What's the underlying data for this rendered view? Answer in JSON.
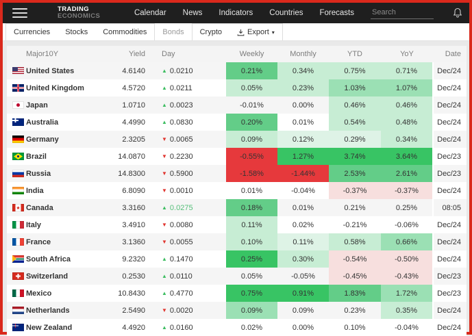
{
  "header": {
    "logo_line1": "TRADING",
    "logo_line2": "ECONOMICS",
    "nav": [
      "Calendar",
      "News",
      "Indicators",
      "Countries",
      "Forecasts"
    ],
    "search_placeholder": "Search"
  },
  "tabs": {
    "items": [
      "Currencies",
      "Stocks",
      "Commodities",
      "Bonds",
      "Crypto"
    ],
    "active": "Bonds",
    "export_label": "Export"
  },
  "table": {
    "columns": [
      "Major10Y",
      "Yield",
      "Day",
      "Weekly",
      "Monthly",
      "YTD",
      "YoY",
      "Date"
    ],
    "rows": [
      {
        "country": "United States",
        "flag": "us",
        "yield": "4.6140",
        "day_dir": "up",
        "day": "0.0210",
        "day_fresh": false,
        "weekly": "0.21%",
        "monthly": "0.34%",
        "ytd": "0.75%",
        "yoy": "0.71%",
        "date": "Dec/24",
        "bg": [
          "g3",
          "g1",
          "g1",
          "g1"
        ]
      },
      {
        "country": "United Kingdom",
        "flag": "gb",
        "yield": "4.5720",
        "day_dir": "up",
        "day": "0.0211",
        "day_fresh": false,
        "weekly": "0.05%",
        "monthly": "0.23%",
        "ytd": "1.03%",
        "yoy": "1.07%",
        "date": "Dec/24",
        "bg": [
          "g1",
          "g1",
          "g2",
          "g2"
        ]
      },
      {
        "country": "Japan",
        "flag": "jp",
        "yield": "1.0710",
        "day_dir": "up",
        "day": "0.0023",
        "day_fresh": false,
        "weekly": "-0.01%",
        "monthly": "0.00%",
        "ytd": "0.46%",
        "yoy": "0.46%",
        "date": "Dec/24",
        "bg": [
          "none",
          "none",
          "g1",
          "g1"
        ]
      },
      {
        "country": "Australia",
        "flag": "au",
        "yield": "4.4990",
        "day_dir": "up",
        "day": "0.0830",
        "day_fresh": false,
        "weekly": "0.20%",
        "monthly": "0.01%",
        "ytd": "0.54%",
        "yoy": "0.48%",
        "date": "Dec/24",
        "bg": [
          "g3",
          "none",
          "g1",
          "g1"
        ]
      },
      {
        "country": "Germany",
        "flag": "de",
        "yield": "2.3205",
        "day_dir": "down",
        "day": "0.0065",
        "day_fresh": false,
        "weekly": "0.09%",
        "monthly": "0.12%",
        "ytd": "0.29%",
        "yoy": "0.34%",
        "date": "Dec/24",
        "bg": [
          "g1",
          "g0",
          "g0",
          "g1"
        ]
      },
      {
        "country": "Brazil",
        "flag": "br",
        "yield": "14.0870",
        "day_dir": "down",
        "day": "0.2230",
        "day_fresh": false,
        "weekly": "-0.55%",
        "monthly": "1.27%",
        "ytd": "3.74%",
        "yoy": "3.64%",
        "date": "Dec/23",
        "bg": [
          "r3",
          "g4",
          "g4",
          "g4"
        ]
      },
      {
        "country": "Russia",
        "flag": "ru",
        "yield": "14.8300",
        "day_dir": "down",
        "day": "0.5900",
        "day_fresh": false,
        "weekly": "-1.58%",
        "monthly": "-1.44%",
        "ytd": "2.53%",
        "yoy": "2.61%",
        "date": "Dec/23",
        "bg": [
          "r3",
          "r3",
          "g3",
          "g3"
        ]
      },
      {
        "country": "India",
        "flag": "in",
        "yield": "6.8090",
        "day_dir": "down",
        "day": "0.0010",
        "day_fresh": false,
        "weekly": "0.01%",
        "monthly": "-0.04%",
        "ytd": "-0.37%",
        "yoy": "-0.37%",
        "date": "Dec/24",
        "bg": [
          "none",
          "none",
          "r1",
          "r1"
        ]
      },
      {
        "country": "Canada",
        "flag": "ca",
        "yield": "3.3160",
        "day_dir": "up",
        "day": "0.0275",
        "day_fresh": true,
        "weekly": "0.18%",
        "monthly": "0.01%",
        "ytd": "0.21%",
        "yoy": "0.25%",
        "date": "08:05",
        "bg": [
          "g3",
          "none",
          "none",
          "none"
        ]
      },
      {
        "country": "Italy",
        "flag": "it",
        "yield": "3.4910",
        "day_dir": "down",
        "day": "0.0080",
        "day_fresh": false,
        "weekly": "0.11%",
        "monthly": "0.02%",
        "ytd": "-0.21%",
        "yoy": "-0.06%",
        "date": "Dec/24",
        "bg": [
          "g1",
          "none",
          "none",
          "none"
        ]
      },
      {
        "country": "France",
        "flag": "fr",
        "yield": "3.1360",
        "day_dir": "down",
        "day": "0.0055",
        "day_fresh": false,
        "weekly": "0.10%",
        "monthly": "0.11%",
        "ytd": "0.58%",
        "yoy": "0.66%",
        "date": "Dec/24",
        "bg": [
          "g1",
          "g0",
          "g1",
          "g2"
        ]
      },
      {
        "country": "South Africa",
        "flag": "za",
        "yield": "9.2320",
        "day_dir": "up",
        "day": "0.1470",
        "day_fresh": false,
        "weekly": "0.25%",
        "monthly": "0.30%",
        "ytd": "-0.54%",
        "yoy": "-0.50%",
        "date": "Dec/24",
        "bg": [
          "g4",
          "g1",
          "r1",
          "r1"
        ]
      },
      {
        "country": "Switzerland",
        "flag": "ch",
        "yield": "0.2530",
        "day_dir": "up",
        "day": "0.0110",
        "day_fresh": false,
        "weekly": "0.05%",
        "monthly": "-0.05%",
        "ytd": "-0.45%",
        "yoy": "-0.43%",
        "date": "Dec/23",
        "bg": [
          "none",
          "none",
          "r1",
          "r1"
        ]
      },
      {
        "country": "Mexico",
        "flag": "mx",
        "yield": "10.8430",
        "day_dir": "up",
        "day": "0.4770",
        "day_fresh": false,
        "weekly": "0.75%",
        "monthly": "0.91%",
        "ytd": "1.83%",
        "yoy": "1.72%",
        "date": "Dec/23",
        "bg": [
          "g4",
          "g4",
          "g3",
          "g2"
        ]
      },
      {
        "country": "Netherlands",
        "flag": "nl",
        "yield": "2.5490",
        "day_dir": "down",
        "day": "0.0020",
        "day_fresh": false,
        "weekly": "0.09%",
        "monthly": "0.09%",
        "ytd": "0.23%",
        "yoy": "0.35%",
        "date": "Dec/24",
        "bg": [
          "g2",
          "none",
          "none",
          "g1"
        ]
      },
      {
        "country": "New Zealand",
        "flag": "nz",
        "yield": "4.4920",
        "day_dir": "up",
        "day": "0.0160",
        "day_fresh": false,
        "weekly": "0.02%",
        "monthly": "0.00%",
        "ytd": "0.10%",
        "yoy": "-0.04%",
        "date": "Dec/24",
        "bg": [
          "none",
          "none",
          "none",
          "none"
        ]
      }
    ]
  },
  "colors": {
    "frame_red": "#da291c",
    "g4": "#38c464",
    "g3": "#63cd88",
    "g2": "#9be0b4",
    "g1": "#c7edd4",
    "g0": "#def3e6",
    "r3": "#e6393c",
    "r1": "#f7dfde",
    "up_triangle": "#3dbd61",
    "down_triangle": "#e0352f",
    "fresh_day_text": "#55bf79"
  }
}
